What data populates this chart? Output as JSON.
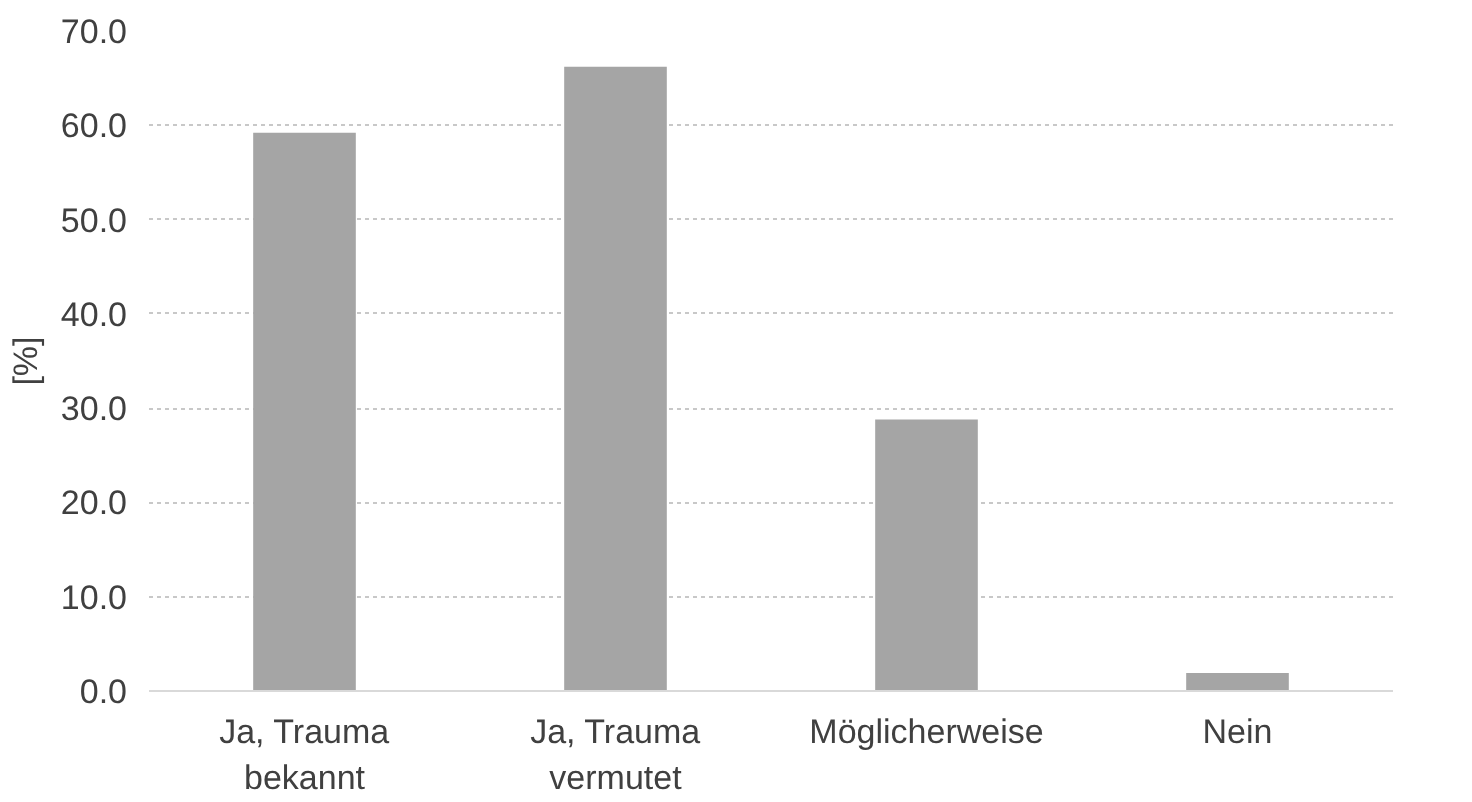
{
  "chart_data": {
    "type": "bar",
    "ylabel": "[%]",
    "categories": [
      "Ja, Trauma\nbekannt",
      "Ja, Trauma\nvermutet",
      "Möglicherweise",
      "Nein"
    ],
    "values": [
      59.2,
      66.2,
      28.8,
      1.9
    ],
    "color": "#a5a5a5",
    "ylim": [
      0,
      70
    ],
    "yticks": [
      {
        "value": 0,
        "label": "0.0"
      },
      {
        "value": 10,
        "label": "10.0"
      },
      {
        "value": 20,
        "label": "20.0"
      },
      {
        "value": 30,
        "label": "30.0"
      },
      {
        "value": 40,
        "label": "40.0"
      },
      {
        "value": 50,
        "label": "50.0"
      },
      {
        "value": 60,
        "label": "60.0"
      },
      {
        "value": 70,
        "label": "70.0"
      }
    ],
    "grid": "y"
  }
}
